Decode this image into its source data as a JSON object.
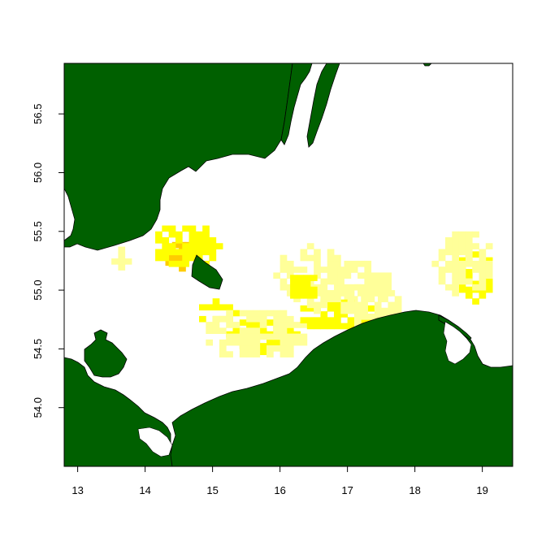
{
  "colors": {
    "land": "#006000",
    "water": "#ffffff",
    "frame": "#000000",
    "density_low": "#ffff99",
    "density_mid": "#ffff00",
    "density_high": "#ffcc00"
  },
  "chart_data": {
    "type": "heatmap",
    "title": "",
    "xlabel": "",
    "ylabel": "",
    "xlim": [
      12.8,
      19.45
    ],
    "ylim": [
      53.5,
      56.93
    ],
    "x_ticks": [
      "13",
      "14",
      "15",
      "16",
      "17",
      "18",
      "19"
    ],
    "y_ticks": [
      "54.0",
      "54.5",
      "55.0",
      "55.5",
      "56.0",
      "56.5"
    ],
    "density_levels": [
      "low",
      "mid",
      "high"
    ],
    "cells": []
  }
}
